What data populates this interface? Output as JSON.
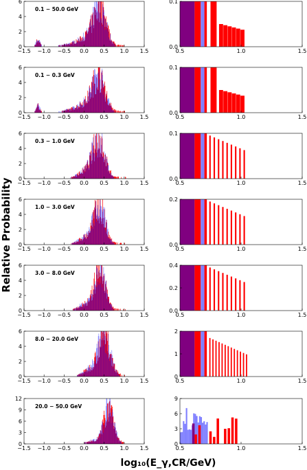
{
  "figure": {
    "ylabel": "Relative Probability",
    "xlabel": "log₁₀(E_γ,CR/GeV)",
    "colors": {
      "purple": "#800080",
      "red": "#ff0000",
      "blue": "#8080ff"
    }
  },
  "chart_data": [
    {
      "type": "bar",
      "panel": "left",
      "bin_label": "0.1 − 50.0 GeV",
      "xlim": [
        -1.5,
        1.5
      ],
      "ylim": [
        0,
        6
      ],
      "xticks": [
        "−1.5",
        "−1.0",
        "−0.5",
        "0.0",
        "0.5",
        "1.0",
        "1.5"
      ],
      "yticks": [
        "0",
        "2",
        "4",
        "6"
      ],
      "peak_x": 0.38,
      "peak_y": 5.2,
      "width": 0.16,
      "low_hump": true
    },
    {
      "type": "bar",
      "panel": "right",
      "xlim": [
        0.5,
        1.5
      ],
      "ylim": [
        0,
        0.1
      ],
      "xticks": [
        "0.5",
        "1.0",
        "1.5"
      ],
      "yticks": [
        "0.0",
        "0.1"
      ],
      "zoom": "low"
    },
    {
      "type": "bar",
      "panel": "left",
      "bin_label": "0.1 − 0.3 GeV",
      "xlim": [
        -1.5,
        1.5
      ],
      "ylim": [
        0,
        6
      ],
      "xticks": [
        "−1.5",
        "−1.0",
        "−0.5",
        "0.0",
        "0.5",
        "1.0",
        "1.5"
      ],
      "yticks": [
        "0",
        "2",
        "4",
        "6"
      ],
      "peak_x": 0.36,
      "peak_y": 5.0,
      "width": 0.16,
      "low_hump": true
    },
    {
      "type": "bar",
      "panel": "right",
      "xlim": [
        0.5,
        1.5
      ],
      "ylim": [
        0,
        0.1
      ],
      "xticks": [
        "0.5",
        "1.0",
        "1.5"
      ],
      "yticks": [
        "0.0",
        "0.1"
      ],
      "zoom": "low"
    },
    {
      "type": "bar",
      "panel": "left",
      "bin_label": "0.3 − 1.0 GeV",
      "xlim": [
        -1.5,
        1.5
      ],
      "ylim": [
        0,
        6
      ],
      "xticks": [
        "−1.5",
        "−1.0",
        "−0.5",
        "0.0",
        "0.5",
        "1.0",
        "1.5"
      ],
      "yticks": [
        "0",
        "2",
        "4",
        "6"
      ],
      "peak_x": 0.36,
      "peak_y": 5.2,
      "width": 0.15,
      "low_hump": false
    },
    {
      "type": "bar",
      "panel": "right",
      "xlim": [
        0.5,
        1.5
      ],
      "ylim": [
        0,
        0.1
      ],
      "xticks": [
        "0.5",
        "1.0",
        "1.5"
      ],
      "yticks": [
        "0.0",
        "0.1"
      ],
      "zoom": "comb"
    },
    {
      "type": "bar",
      "panel": "left",
      "bin_label": "1.0 − 3.0 GeV",
      "xlim": [
        -1.5,
        1.5
      ],
      "ylim": [
        0,
        6
      ],
      "xticks": [
        "−1.5",
        "−1.0",
        "−0.5",
        "0.0",
        "0.5",
        "1.0",
        "1.5"
      ],
      "yticks": [
        "0",
        "2",
        "4",
        "6"
      ],
      "peak_x": 0.38,
      "peak_y": 5.3,
      "width": 0.14,
      "low_hump": false
    },
    {
      "type": "bar",
      "panel": "right",
      "xlim": [
        0.5,
        1.5
      ],
      "ylim": [
        0,
        0.2
      ],
      "xticks": [
        "0.5",
        "1.0",
        "1.5"
      ],
      "yticks": [
        "0.0",
        "0.2"
      ],
      "zoom": "comb"
    },
    {
      "type": "bar",
      "panel": "left",
      "bin_label": "3.0 − 8.0 GeV",
      "xlim": [
        -1.5,
        1.5
      ],
      "ylim": [
        0,
        6
      ],
      "xticks": [
        "−1.5",
        "−1.0",
        "−0.5",
        "0.0",
        "0.5",
        "1.0",
        "1.5"
      ],
      "yticks": [
        "0",
        "2",
        "4",
        "6"
      ],
      "peak_x": 0.4,
      "peak_y": 5.8,
      "width": 0.13,
      "low_hump": false
    },
    {
      "type": "bar",
      "panel": "right",
      "xlim": [
        0.5,
        1.5
      ],
      "ylim": [
        0,
        0.4
      ],
      "xticks": [
        "0.5",
        "1.0",
        "1.5"
      ],
      "yticks": [
        "0.0",
        "0.2",
        "0.4"
      ],
      "zoom": "comb"
    },
    {
      "type": "bar",
      "panel": "left",
      "bin_label": "8.0 − 20.0 GeV",
      "xlim": [
        -1.5,
        1.5
      ],
      "ylim": [
        0,
        6
      ],
      "xticks": [
        "−1.5",
        "−1.0",
        "−0.5",
        "0.0",
        "0.5",
        "1.0",
        "1.5"
      ],
      "yticks": [
        "0",
        "2",
        "4",
        "6"
      ],
      "peak_x": 0.5,
      "peak_y": 5.5,
      "width": 0.15,
      "low_hump": false
    },
    {
      "type": "bar",
      "panel": "right",
      "xlim": [
        0.5,
        1.5
      ],
      "ylim": [
        0,
        2
      ],
      "xticks": [
        "0.5",
        "1.0",
        "1.5"
      ],
      "yticks": [
        "0",
        "1",
        "2"
      ],
      "zoom": "tall"
    },
    {
      "type": "bar",
      "panel": "left",
      "bin_label": "20.0 − 50.0 GeV",
      "xlim": [
        -1.5,
        1.5
      ],
      "ylim": [
        0,
        12
      ],
      "xticks": [
        "−1.5",
        "−1.0",
        "−0.5",
        "0.0",
        "0.5",
        "1.0",
        "1.5"
      ],
      "yticks": [
        "0",
        "3",
        "6",
        "9",
        "12"
      ],
      "peak_x": 0.62,
      "peak_y": 10.0,
      "width": 0.12,
      "low_hump": false
    },
    {
      "type": "bar",
      "panel": "right",
      "xlim": [
        0.5,
        1.5
      ],
      "ylim": [
        0,
        9
      ],
      "xticks": [
        "0.5",
        "1.0",
        "1.5"
      ],
      "yticks": [
        "0",
        "3",
        "6",
        "9"
      ],
      "zoom": "high"
    }
  ]
}
